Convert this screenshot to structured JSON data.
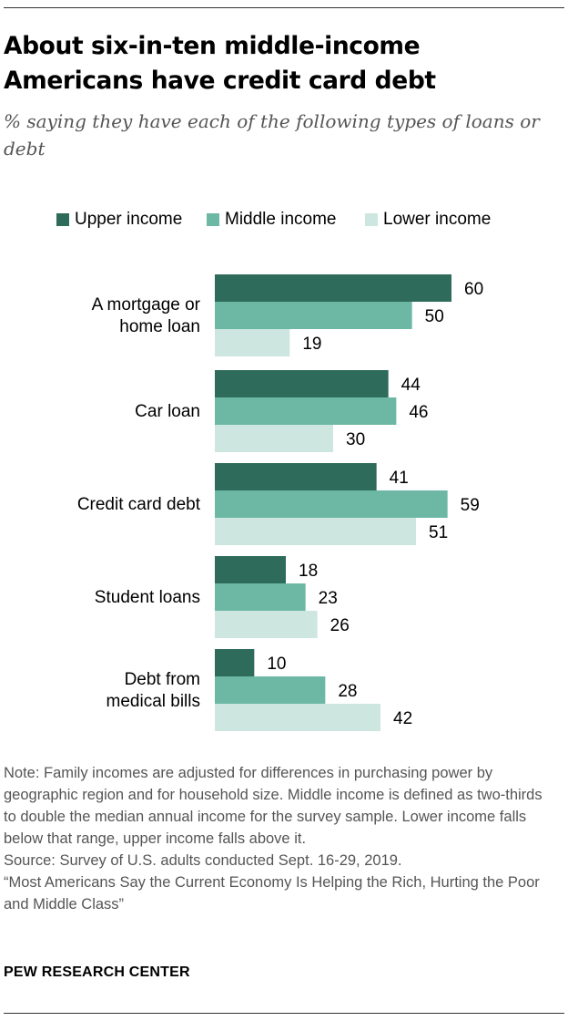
{
  "title": "About six-in-ten middle-income Americans have credit card debt",
  "subtitle": "% saying they have each of the following types of loans or debt",
  "legend": [
    {
      "label": "Upper income",
      "color": "#2e6b5b"
    },
    {
      "label": "Middle income",
      "color": "#6db8a5"
    },
    {
      "label": "Lower income",
      "color": "#cde6e0"
    }
  ],
  "chart_data": {
    "type": "bar",
    "orientation": "horizontal",
    "categories": [
      [
        "A mortgage or",
        "home loan"
      ],
      [
        "Car loan"
      ],
      [
        "Credit card debt"
      ],
      [
        "Student loans"
      ],
      [
        "Debt from",
        "medical bills"
      ]
    ],
    "series": [
      {
        "name": "Upper income",
        "color": "#2e6b5b",
        "values": [
          60,
          44,
          41,
          18,
          10
        ]
      },
      {
        "name": "Middle income",
        "color": "#6db8a5",
        "values": [
          50,
          46,
          59,
          23,
          28
        ]
      },
      {
        "name": "Lower income",
        "color": "#cde6e0",
        "values": [
          19,
          30,
          51,
          26,
          42
        ]
      }
    ],
    "xlim": [
      0,
      60
    ],
    "grid": false,
    "legend_position": "top"
  },
  "notes": [
    "Note:  Family incomes are adjusted for differences in purchasing power by geographic region and for household size. Middle income is defined as two-thirds to double the median annual income for the survey sample. Lower income falls below that range, upper income falls above it.",
    "Source: Survey of U.S. adults conducted Sept. 16-29, 2019.",
    "“Most Americans Say the Current Economy Is Helping the Rich, Hurting the Poor and Middle Class”"
  ],
  "brand": "PEW RESEARCH CENTER"
}
